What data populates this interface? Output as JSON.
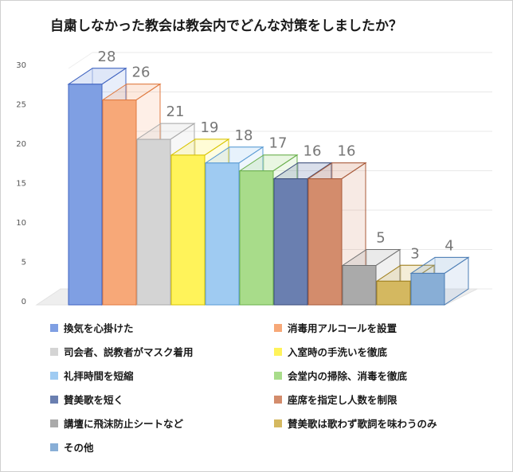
{
  "chart_data": {
    "type": "bar",
    "title": "自粛しなかった教会は教会内でどんな対策をしましたか？",
    "ylim": [
      0,
      30
    ],
    "yticks": [
      0,
      5,
      10,
      15,
      20,
      25,
      30
    ],
    "grid": true,
    "legend_position": "bottom",
    "categories": [
      "換気を心掛けた",
      "消毒用アルコールを設置",
      "司会者、説教者がマスク着用",
      "入室時の手洗いを徹底",
      "礼拝時間を短縮",
      "会堂内の掃除、消毒を徹底",
      "賛美歌を短く",
      "座席を指定し人数を制限",
      "講壇に飛沫防止シートなど",
      "賛美歌は歌わず歌詞を味わうのみ",
      "その他"
    ],
    "values": [
      28,
      26,
      21,
      19,
      18,
      17,
      16,
      16,
      5,
      3,
      4
    ],
    "colors": [
      "#7f9fe3",
      "#f7a878",
      "#d4d4d4",
      "#fff35a",
      "#9fcbf2",
      "#a8dc8a",
      "#6a7fb0",
      "#d38c6c",
      "#aaaaaa",
      "#d4b860",
      "#88aed6"
    ],
    "edge_colors": [
      "#3f63c0",
      "#e07a40",
      "#aaaaaa",
      "#d8c400",
      "#5a9bd4",
      "#6ab04c",
      "#3d4f7c",
      "#a85a3a",
      "#707070",
      "#a08020",
      "#4a7cb4"
    ]
  }
}
